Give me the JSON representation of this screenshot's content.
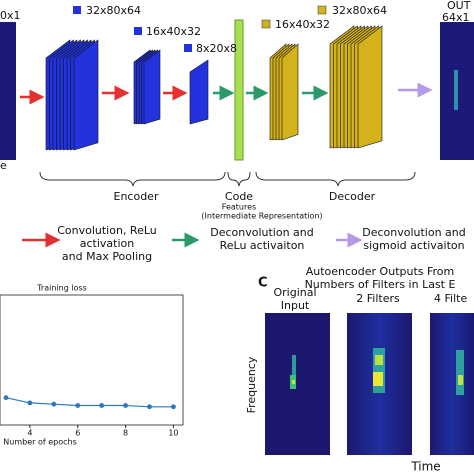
{
  "encoder_diagram": {
    "input": {
      "size_label": "0x1",
      "name_label": "e"
    },
    "layers": [
      {
        "label": "32x80x64"
      },
      {
        "label": "16x40x32"
      },
      {
        "label": "8x20x8"
      },
      {
        "label": "16x40x32"
      },
      {
        "label": "32x80x64"
      }
    ],
    "output": {
      "title": "OUT",
      "size_label": "64x1"
    },
    "sections": {
      "encoder": "Encoder",
      "code": "Code",
      "features": "Features",
      "representation": "(Intermediate Representation)",
      "decoder": "Decoder"
    },
    "legend": [
      {
        "lines": [
          "Convolution, ReLu",
          "activation",
          "and Max Pooling"
        ]
      },
      {
        "lines": [
          "Deconvolution and",
          "ReLu activaiton"
        ]
      },
      {
        "lines": [
          "Deconvolution and",
          "sigmoid activaiton"
        ]
      }
    ]
  },
  "chart_data": {
    "type": "line",
    "title": "Training loss",
    "x_label": "Number of epochs",
    "x": [
      3,
      4,
      5,
      6,
      7,
      8,
      9,
      10
    ],
    "values": [
      0.21,
      0.17,
      0.16,
      0.15,
      0.15,
      0.15,
      0.14,
      0.14
    ],
    "color": "#2a78c0",
    "xlim": [
      2.75,
      10.4
    ],
    "ylim": [
      0,
      1
    ],
    "xticks": [
      4,
      6,
      8,
      10
    ]
  },
  "panel_c": {
    "letter": "C",
    "title_lines": [
      "Autoencoder Outputs From",
      "Numbers of Filters in Last E"
    ],
    "panels": [
      {
        "lines": [
          "Original",
          "Input"
        ]
      },
      {
        "lines": [
          "2 Filters"
        ]
      },
      {
        "lines": [
          "4 Filte"
        ]
      }
    ],
    "y_label": "Frequency",
    "x_label": "Time"
  }
}
